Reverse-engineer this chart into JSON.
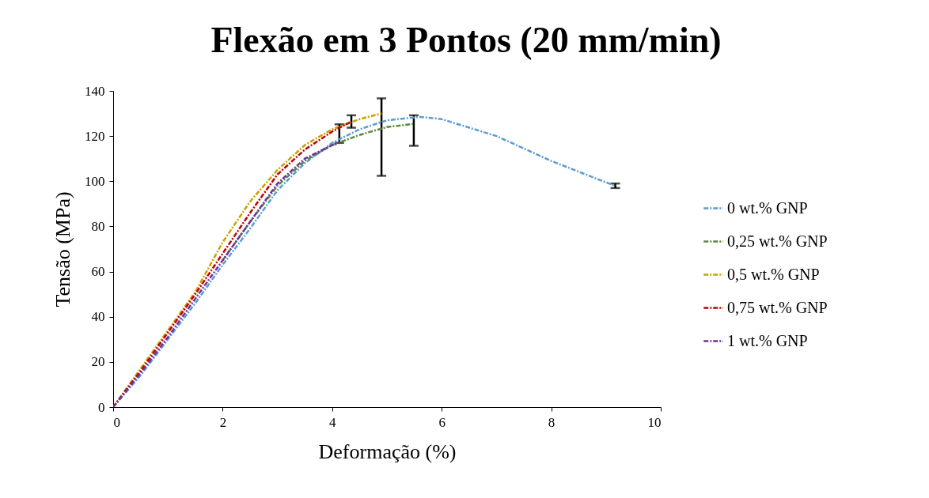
{
  "chart_data": {
    "type": "line",
    "title": "Flexão em 3 Pontos (20 mm/min)",
    "xlabel": "Deformação (%)",
    "ylabel": "Tensão (MPa)",
    "xlim": [
      0,
      10
    ],
    "xticks": [
      0,
      2,
      4,
      6,
      8,
      10
    ],
    "ylim": [
      0,
      140
    ],
    "yticks": [
      0,
      20,
      40,
      60,
      80,
      100,
      120,
      140
    ],
    "grid": false,
    "legend": "right",
    "line_style": "dashed",
    "marker": "none",
    "series": [
      {
        "name": "0 wt.% GNP",
        "color": "#5b9bd5",
        "x": [
          0,
          0.5,
          1,
          1.5,
          2,
          2.5,
          3,
          3.5,
          4,
          4.5,
          5,
          5.6,
          6,
          7,
          8,
          9,
          9.17
        ],
        "values": [
          0,
          14,
          30,
          46,
          63,
          79,
          96,
          108,
          117,
          123,
          127,
          128.5,
          127.5,
          120,
          109,
          99.5,
          98
        ],
        "errors": [
          null,
          null,
          null,
          null,
          null,
          null,
          null,
          null,
          null,
          null,
          null,
          null,
          null,
          null,
          null,
          null,
          [
            97,
            99
          ]
        ]
      },
      {
        "name": "0,25 wt.% GNP",
        "color": "#5a8a3a",
        "x": [
          2,
          2.5,
          3,
          3.5,
          4,
          4.5,
          5,
          5.49
        ],
        "values": [
          65,
          82,
          98,
          109,
          116,
          120.5,
          124,
          125.4
        ],
        "errors": [
          null,
          null,
          null,
          null,
          null,
          null,
          null,
          [
            115.7,
            129.2
          ]
        ]
      },
      {
        "name": "0,5 wt.% GNP",
        "color": "#c9a000",
        "x": [
          0,
          0.5,
          1,
          1.5,
          2,
          2.5,
          3,
          3.5,
          4,
          4.5,
          4.9
        ],
        "values": [
          0,
          17,
          34,
          51,
          73,
          91,
          105,
          116,
          123,
          127.5,
          130
        ],
        "errors": [
          null,
          null,
          null,
          null,
          null,
          null,
          null,
          null,
          null,
          null,
          [
            102.4,
            136.7
          ]
        ]
      },
      {
        "name": "0,75 wt.% GNP",
        "color": "#c00000",
        "x": [
          0,
          0.5,
          1,
          1.5,
          2,
          2.5,
          3,
          3.5,
          4,
          4.35
        ],
        "values": [
          0,
          16,
          33,
          50,
          68,
          86,
          103,
          114,
          122,
          126.4
        ],
        "errors": [
          null,
          null,
          null,
          null,
          null,
          null,
          null,
          null,
          null,
          [
            123.7,
            129.2
          ]
        ]
      },
      {
        "name": "1 wt.% GNP",
        "color": "#7030a0",
        "x": [
          0,
          0.5,
          1,
          1.5,
          2,
          2.5,
          3,
          3.5,
          4,
          4.13
        ],
        "values": [
          0,
          15,
          31,
          48,
          65,
          82,
          99,
          110,
          116,
          117
        ],
        "errors": [
          null,
          null,
          null,
          null,
          null,
          null,
          null,
          null,
          null,
          [
            117,
            125.2
          ]
        ]
      }
    ]
  }
}
